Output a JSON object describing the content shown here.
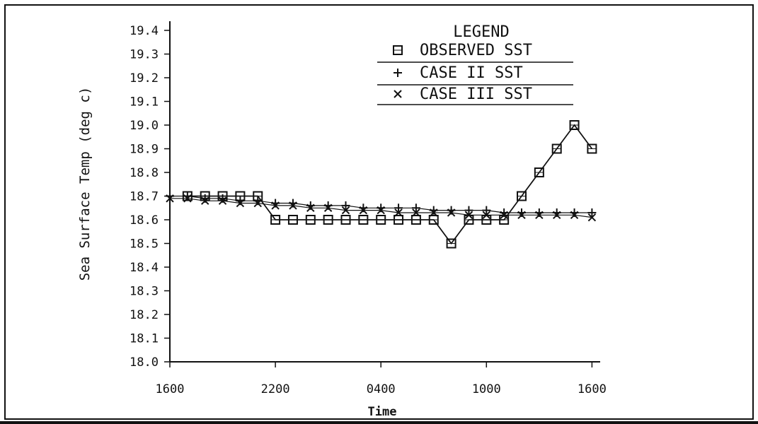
{
  "chart_data": {
    "type": "line",
    "title": "",
    "xlabel": "Time",
    "ylabel": "Sea Surface Temp (deg c)",
    "ylim": [
      18.0,
      19.4
    ],
    "xticks": [
      "1600",
      "2200",
      "0400",
      "1000",
      "1600"
    ],
    "yticks": [
      "18.0",
      "18.1",
      "18.2",
      "18.3",
      "18.4",
      "18.5",
      "18.6",
      "18.7",
      "18.8",
      "18.9",
      "19.0",
      "19.1",
      "19.2",
      "19.3",
      "19.4"
    ],
    "legend": {
      "title": "LEGEND",
      "position": "top-right"
    },
    "x_hours": [
      0,
      1,
      2,
      3,
      4,
      5,
      6,
      7,
      8,
      9,
      10,
      11,
      12,
      13,
      14,
      15,
      16,
      17,
      18,
      19,
      20,
      21,
      22,
      23,
      24
    ],
    "series": [
      {
        "name": "OBSERVED SST",
        "marker": "square",
        "x": [
          1,
          2,
          3,
          4,
          5,
          6,
          7,
          8,
          9,
          10,
          11,
          12,
          13,
          14,
          15,
          16,
          17,
          18,
          19,
          20,
          21,
          22,
          23,
          24
        ],
        "values": [
          18.7,
          18.7,
          18.7,
          18.7,
          18.7,
          18.6,
          18.6,
          18.6,
          18.6,
          18.6,
          18.6,
          18.6,
          18.6,
          18.6,
          18.6,
          18.5,
          18.6,
          18.6,
          18.6,
          18.7,
          18.8,
          18.9,
          19.0,
          18.9
        ]
      },
      {
        "name": "CASE II SST",
        "marker": "plus",
        "x": [
          0,
          1,
          2,
          3,
          4,
          5,
          6,
          7,
          8,
          9,
          10,
          11,
          12,
          13,
          14,
          15,
          16,
          17,
          18,
          19,
          20,
          21,
          22,
          23,
          24
        ],
        "values": [
          18.7,
          18.7,
          18.69,
          18.69,
          18.68,
          18.68,
          18.67,
          18.67,
          18.66,
          18.66,
          18.66,
          18.65,
          18.65,
          18.65,
          18.65,
          18.64,
          18.64,
          18.64,
          18.64,
          18.63,
          18.63,
          18.63,
          18.63,
          18.63,
          18.63
        ]
      },
      {
        "name": "CASE III SST",
        "marker": "x",
        "x": [
          0,
          1,
          2,
          3,
          4,
          5,
          6,
          7,
          8,
          9,
          10,
          11,
          12,
          13,
          14,
          15,
          16,
          17,
          18,
          19,
          20,
          21,
          22,
          23,
          24
        ],
        "values": [
          18.69,
          18.69,
          18.68,
          18.68,
          18.67,
          18.67,
          18.66,
          18.66,
          18.65,
          18.65,
          18.64,
          18.64,
          18.64,
          18.63,
          18.63,
          18.63,
          18.63,
          18.62,
          18.62,
          18.62,
          18.62,
          18.62,
          18.62,
          18.62,
          18.61
        ]
      }
    ]
  }
}
